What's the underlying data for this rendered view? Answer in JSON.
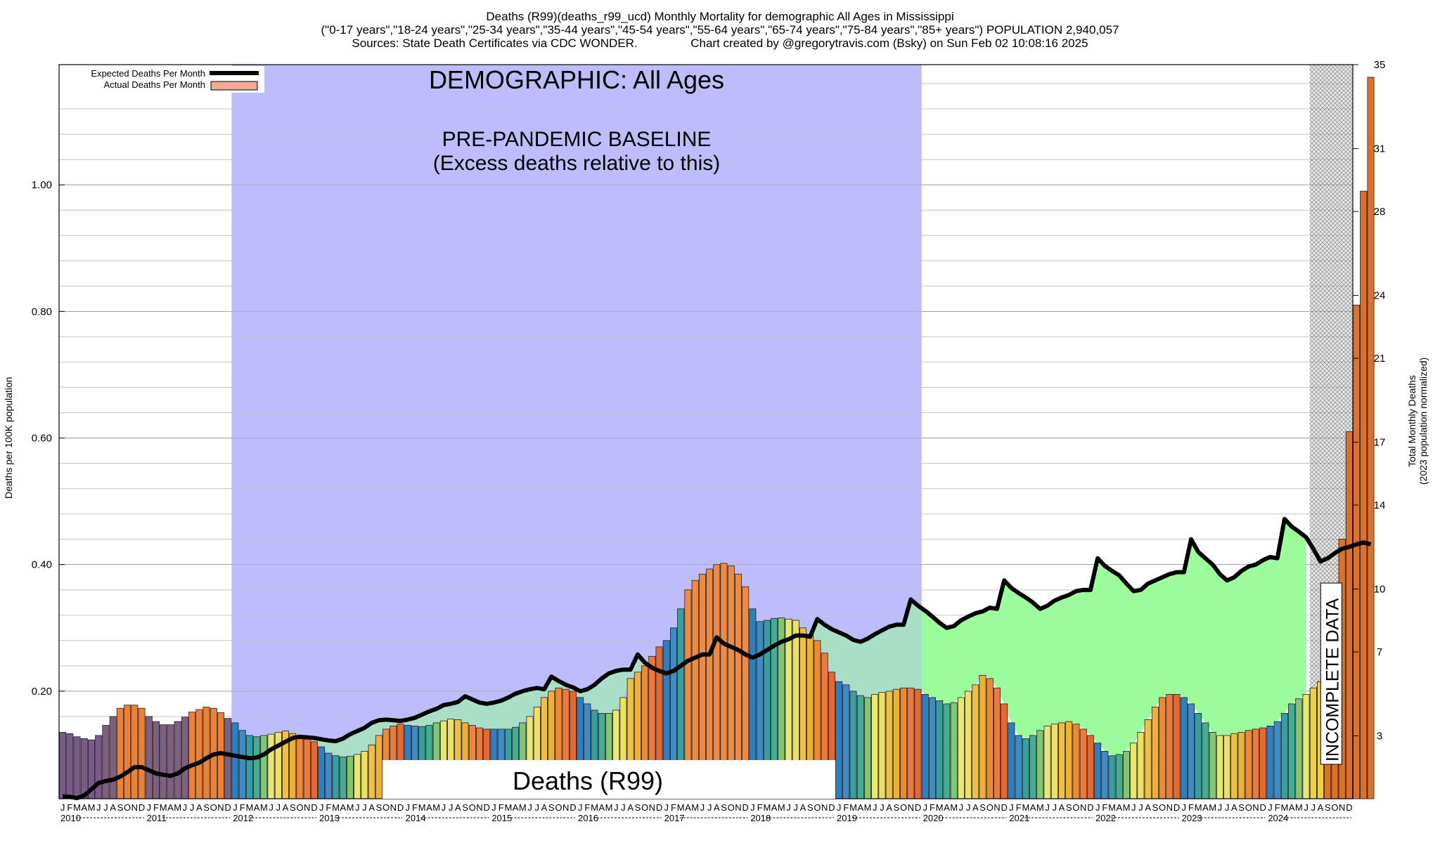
{
  "header": {
    "title_line1": "Deaths (R99)(deaths_r99_ucd) Monthly Mortality for demographic All Ages in Mississippi",
    "title_line2": "(\"0-17 years\",\"18-24 years\",\"25-34 years\",\"35-44 years\",\"45-54 years\",\"55-64 years\",\"65-74 years\",\"75-84 years\",\"85+ years\") POPULATION 2,940,057",
    "title_line3": "Sources: State Death Certificates via CDC WONDER.                Chart created by @gregorytravis.com (Bsky) on Sun Feb 02 10:08:16 2025"
  },
  "chart_data": {
    "type": "bar",
    "title": "Deaths (R99)(deaths_r99_ucd) Monthly Mortality for demographic All Ages in Mississippi",
    "ylabel": "Deaths per 100K population",
    "y2label_line1": "Total Monthly Deaths",
    "y2label_line2": "(2023 population normalized)",
    "ylim": [
      0.03,
      1.19
    ],
    "y2lim": [
      0,
      35
    ],
    "y_ticks": [
      "0.20",
      "0.40",
      "0.60",
      "0.80",
      "1.00"
    ],
    "y_tick_values": [
      0.2,
      0.4,
      0.6,
      0.8,
      1.0
    ],
    "y2_ticks": [
      "3",
      "7",
      "10",
      "14",
      "17",
      "21",
      "24",
      "28",
      "31",
      "35"
    ],
    "y2_tick_values": [
      3,
      7,
      10,
      14,
      17,
      21,
      24,
      28,
      31,
      35
    ],
    "month_letters": [
      "J",
      "F",
      "M",
      "A",
      "M",
      "J",
      "J",
      "A",
      "S",
      "O",
      "N",
      "D"
    ],
    "years": [
      "2010",
      "2011",
      "2012",
      "2013",
      "2014",
      "2015",
      "2016",
      "2017",
      "2018",
      "2019",
      "2020",
      "2021",
      "2022",
      "2023",
      "2024"
    ],
    "start": "2010-01",
    "legend": {
      "position": "top-left",
      "entries": [
        "Expected Deaths Per Month",
        "Actual Deaths Per Month"
      ]
    },
    "annotations": {
      "demographic": "DEMOGRAPHIC: All Ages",
      "baseline_line1": "PRE-PANDEMIC BASELINE",
      "baseline_line2": "(Excess deaths relative to this)",
      "deaths_label": "Deaths (R99)",
      "incomplete": "INCOMPLETE DATA"
    },
    "baseline_period": [
      "2012-01",
      "2019-12"
    ],
    "incomplete_period": [
      "2024-07",
      "2024-12"
    ],
    "series": [
      {
        "name": "Actual Deaths Per Month",
        "values": [
          0.135,
          0.133,
          0.128,
          0.125,
          0.123,
          0.13,
          0.146,
          0.16,
          0.173,
          0.178,
          0.178,
          0.173,
          0.16,
          0.152,
          0.147,
          0.147,
          0.152,
          0.159,
          0.167,
          0.171,
          0.175,
          0.173,
          0.166,
          0.157,
          0.15,
          0.138,
          0.13,
          0.128,
          0.13,
          0.132,
          0.135,
          0.137,
          0.133,
          0.128,
          0.125,
          0.12,
          0.112,
          0.102,
          0.098,
          0.096,
          0.097,
          0.1,
          0.105,
          0.115,
          0.13,
          0.14,
          0.145,
          0.148,
          0.146,
          0.145,
          0.144,
          0.146,
          0.15,
          0.153,
          0.156,
          0.155,
          0.15,
          0.146,
          0.142,
          0.14,
          0.14,
          0.14,
          0.14,
          0.143,
          0.15,
          0.16,
          0.175,
          0.19,
          0.2,
          0.205,
          0.203,
          0.2,
          0.19,
          0.18,
          0.17,
          0.165,
          0.165,
          0.17,
          0.19,
          0.22,
          0.23,
          0.24,
          0.255,
          0.27,
          0.28,
          0.3,
          0.33,
          0.36,
          0.375,
          0.385,
          0.393,
          0.4,
          0.402,
          0.398,
          0.385,
          0.365,
          0.33,
          0.31,
          0.312,
          0.315,
          0.316,
          0.314,
          0.312,
          0.3,
          0.29,
          0.28,
          0.26,
          0.23,
          0.215,
          0.21,
          0.2,
          0.193,
          0.19,
          0.195,
          0.198,
          0.2,
          0.203,
          0.205,
          0.205,
          0.203,
          0.195,
          0.19,
          0.185,
          0.18,
          0.182,
          0.19,
          0.2,
          0.21,
          0.225,
          0.22,
          0.205,
          0.18,
          0.15,
          0.13,
          0.125,
          0.13,
          0.138,
          0.145,
          0.148,
          0.15,
          0.152,
          0.148,
          0.14,
          0.13,
          0.118,
          0.105,
          0.098,
          0.1,
          0.105,
          0.118,
          0.135,
          0.155,
          0.175,
          0.19,
          0.195,
          0.195,
          0.19,
          0.18,
          0.165,
          0.15,
          0.135,
          0.13,
          0.13,
          0.133,
          0.135,
          0.138,
          0.14,
          0.142,
          0.145,
          0.152,
          0.165,
          0.18,
          0.188,
          0.195,
          0.205,
          0.215,
          0.228,
          0.265,
          0.44,
          0.61,
          0.81,
          0.99,
          1.17
        ]
      },
      {
        "name": "Expected Deaths Per Month",
        "values": [
          0.034,
          0.033,
          0.031,
          0.035,
          0.045,
          0.055,
          0.058,
          0.06,
          0.065,
          0.072,
          0.08,
          0.08,
          0.075,
          0.07,
          0.068,
          0.066,
          0.07,
          0.078,
          0.083,
          0.087,
          0.094,
          0.1,
          0.102,
          0.1,
          0.098,
          0.096,
          0.094,
          0.095,
          0.1,
          0.108,
          0.114,
          0.12,
          0.126,
          0.128,
          0.127,
          0.126,
          0.124,
          0.122,
          0.121,
          0.125,
          0.132,
          0.137,
          0.142,
          0.15,
          0.154,
          0.155,
          0.154,
          0.153,
          0.155,
          0.158,
          0.163,
          0.168,
          0.172,
          0.178,
          0.18,
          0.183,
          0.192,
          0.187,
          0.182,
          0.18,
          0.182,
          0.185,
          0.19,
          0.196,
          0.2,
          0.203,
          0.205,
          0.203,
          0.223,
          0.216,
          0.21,
          0.206,
          0.2,
          0.203,
          0.21,
          0.22,
          0.228,
          0.232,
          0.234,
          0.234,
          0.258,
          0.245,
          0.237,
          0.232,
          0.228,
          0.232,
          0.24,
          0.248,
          0.253,
          0.258,
          0.258,
          0.285,
          0.275,
          0.27,
          0.265,
          0.258,
          0.253,
          0.258,
          0.265,
          0.272,
          0.278,
          0.282,
          0.288,
          0.288,
          0.286,
          0.314,
          0.305,
          0.298,
          0.293,
          0.288,
          0.281,
          0.278,
          0.283,
          0.29,
          0.296,
          0.302,
          0.305,
          0.305,
          0.345,
          0.335,
          0.327,
          0.318,
          0.308,
          0.3,
          0.303,
          0.312,
          0.318,
          0.323,
          0.326,
          0.332,
          0.33,
          0.375,
          0.363,
          0.355,
          0.348,
          0.34,
          0.33,
          0.335,
          0.343,
          0.348,
          0.352,
          0.358,
          0.36,
          0.36,
          0.41,
          0.398,
          0.39,
          0.383,
          0.37,
          0.358,
          0.36,
          0.37,
          0.375,
          0.38,
          0.385,
          0.388,
          0.388,
          0.44,
          0.42,
          0.41,
          0.4,
          0.385,
          0.375,
          0.38,
          0.39,
          0.397,
          0.4,
          0.407,
          0.412,
          0.41,
          0.472,
          0.46,
          0.452,
          0.443,
          0.425,
          0.405,
          0.41,
          0.418,
          0.425,
          0.428,
          0.432,
          0.435,
          0.432
        ]
      }
    ]
  }
}
